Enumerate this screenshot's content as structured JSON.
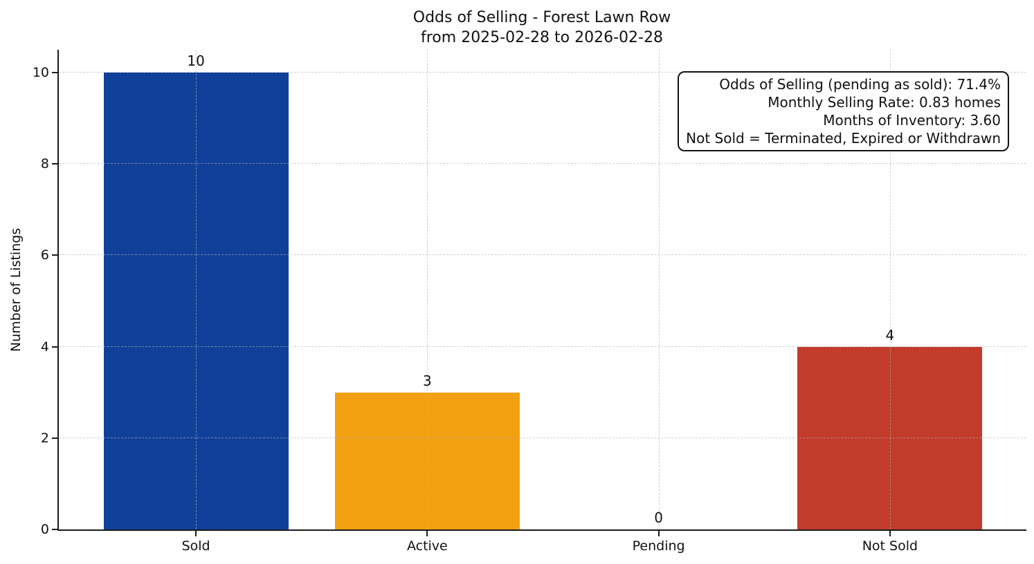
{
  "figure": {
    "background": "#ffffff"
  },
  "chart_data": {
    "type": "bar",
    "title": "Odds of Selling - Forest Lawn Row",
    "subtitle": "from 2025-02-28 to 2026-02-28",
    "categories": [
      "Sold",
      "Active",
      "Pending",
      "Not Sold"
    ],
    "values": [
      10,
      3,
      0,
      4
    ],
    "bar_colors": [
      "#11409a",
      "#f2a012",
      null,
      "#c23b2b"
    ],
    "xlabel": "",
    "ylabel": "Number of Listings",
    "yticks": [
      0,
      2,
      4,
      6,
      8,
      10
    ],
    "ylim": [
      0,
      10.5
    ],
    "grid": {
      "style": "dashed",
      "axes": "both",
      "color": "#d9d9d9",
      "drawn_above_bars": true
    },
    "legend_position": "none",
    "annotation": {
      "position": "top-right",
      "border_color": "#111111",
      "background": "#ffffff",
      "lines": [
        "Odds of Selling (pending as sold): 71.4%",
        "Monthly Selling Rate: 0.83 homes",
        "Months of Inventory: 3.60",
        "Not Sold = Terminated, Expired or Withdrawn"
      ]
    },
    "colors": {
      "text": "#111111",
      "spine": "#1a1a1a"
    }
  }
}
